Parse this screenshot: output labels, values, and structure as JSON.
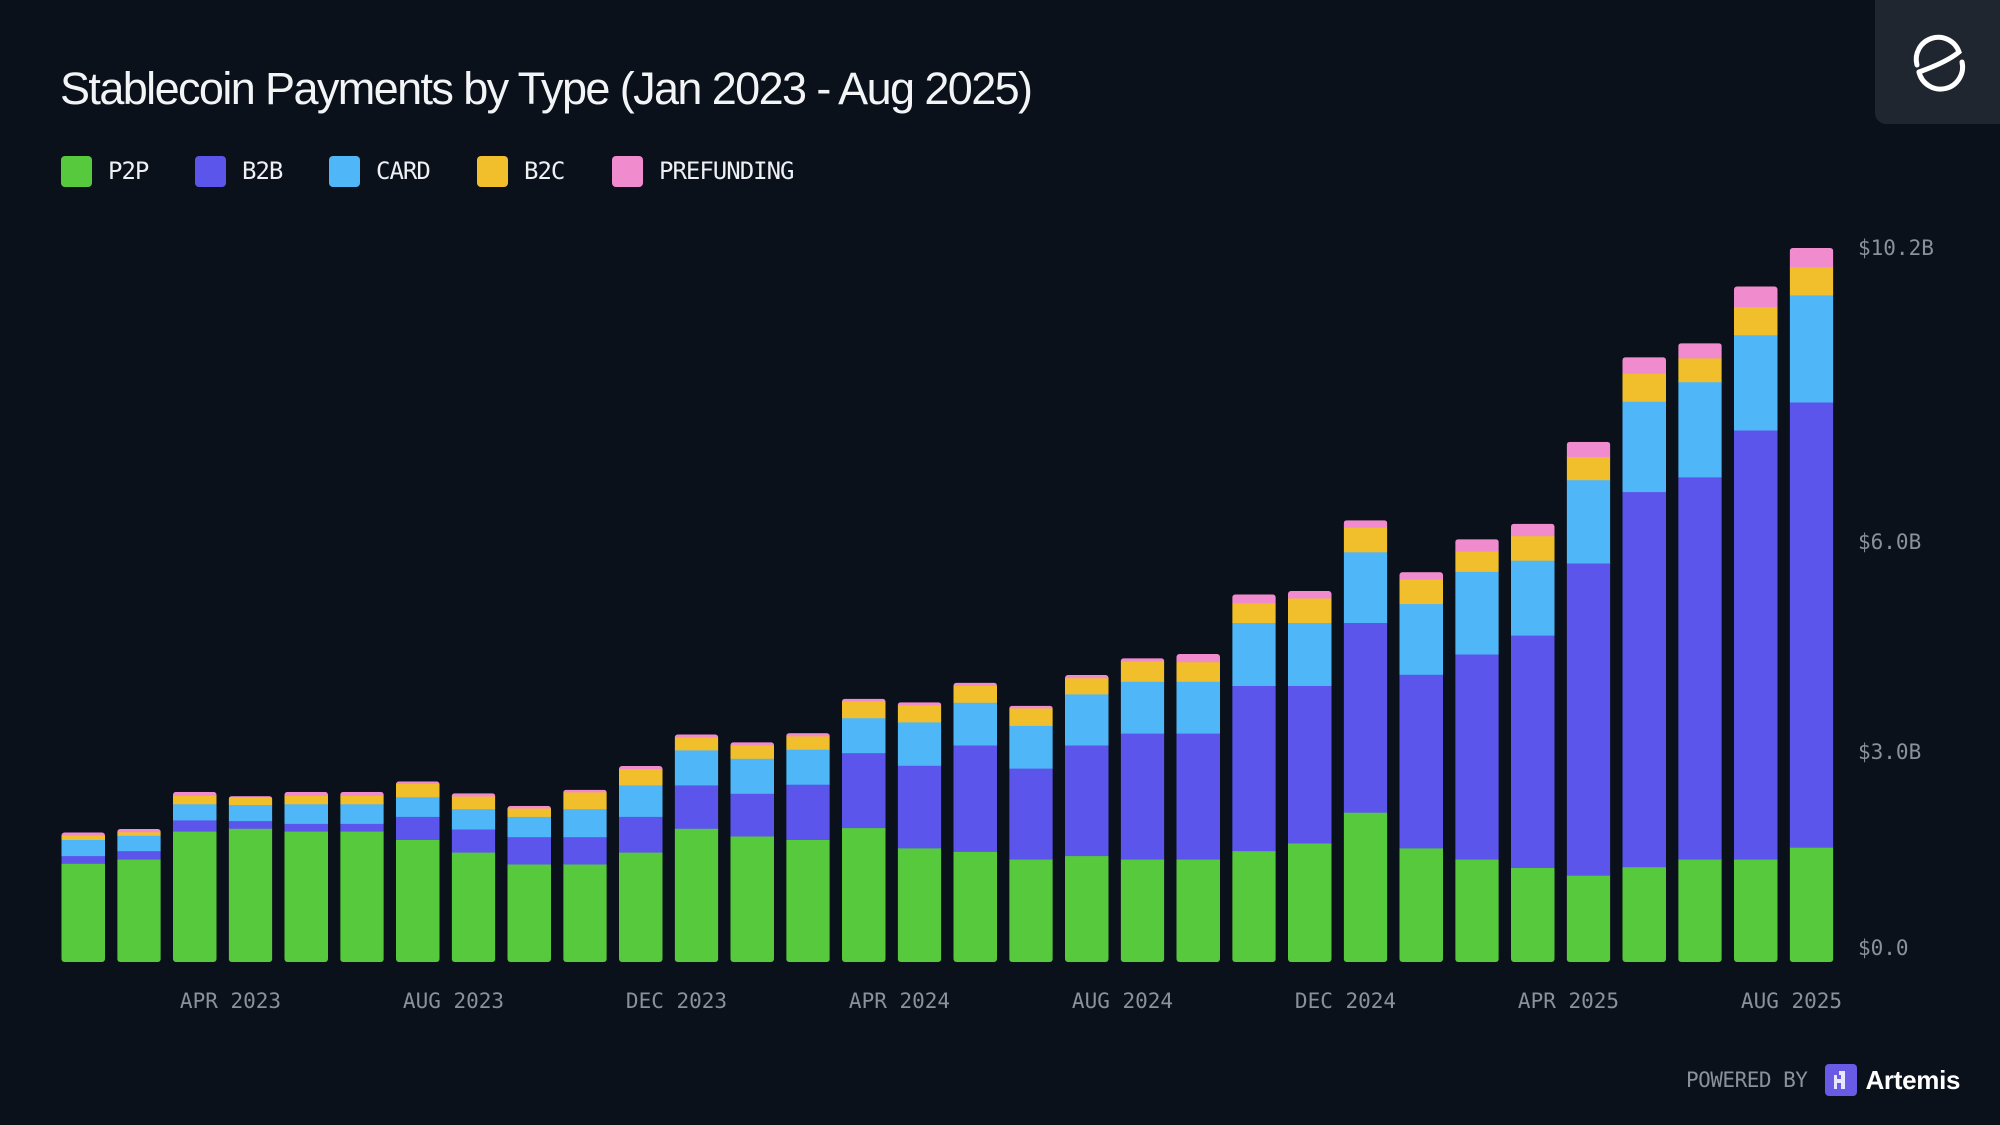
{
  "header": {
    "title": "Stablecoin Payments by Type (Jan 2023 - Aug 2025)"
  },
  "legend": [
    {
      "key": "p2p",
      "label": "P2P",
      "color": "#57c93c"
    },
    {
      "key": "b2b",
      "label": "B2B",
      "color": "#5b55eb"
    },
    {
      "key": "card",
      "label": "CARD",
      "color": "#4fb6f7"
    },
    {
      "key": "b2c",
      "label": "B2C",
      "color": "#f0bf2b"
    },
    {
      "key": "prefunding",
      "label": "PREFUNDING",
      "color": "#f08ccd"
    }
  ],
  "footer": {
    "powered_by": "POWERED BY",
    "brand": "Artemis"
  },
  "logo": {
    "icon": "e-ring-logo-icon"
  },
  "chart_data": {
    "type": "bar",
    "stacked": true,
    "title": "Stablecoin Payments by Type (Jan 2023 - Aug 2025)",
    "xlabel": "",
    "ylabel": "",
    "units": "USD billions",
    "ylim": [
      0,
      10.2
    ],
    "y_ticks": [
      {
        "value": 0,
        "label": "$0.0"
      },
      {
        "value": 3.0,
        "label": "$3.0B"
      },
      {
        "value": 6.0,
        "label": "$6.0B"
      },
      {
        "value": 10.2,
        "label": "$10.2B"
      }
    ],
    "x_tick_labels": [
      {
        "index": 3,
        "label": "APR 2023"
      },
      {
        "index": 7,
        "label": "AUG 2023"
      },
      {
        "index": 11,
        "label": "DEC 2023"
      },
      {
        "index": 15,
        "label": "APR 2024"
      },
      {
        "index": 19,
        "label": "AUG 2024"
      },
      {
        "index": 23,
        "label": "DEC 2024"
      },
      {
        "index": 27,
        "label": "APR 2025"
      },
      {
        "index": 31,
        "label": "AUG 2025"
      }
    ],
    "grid": false,
    "legend_position": "top-left",
    "y_axis_position": "right",
    "categories": [
      "Jan 2023",
      "Feb 2023",
      "Mar 2023",
      "Apr 2023",
      "May 2023",
      "Jun 2023",
      "Jul 2023",
      "Aug 2023",
      "Sep 2023",
      "Oct 2023",
      "Nov 2023",
      "Dec 2023",
      "Jan 2024",
      "Feb 2024",
      "Mar 2024",
      "Apr 2024",
      "May 2024",
      "Jun 2024",
      "Jul 2024",
      "Aug 2024",
      "Sep 2024",
      "Oct 2024",
      "Nov 2024",
      "Dec 2024",
      "Jan 2025",
      "Feb 2025",
      "Mar 2025",
      "Apr 2025",
      "May 2025",
      "Jun 2025",
      "Jul 2025",
      "Aug 2025"
    ],
    "series": [
      {
        "name": "P2P",
        "key": "p2p",
        "values": [
          1.41,
          1.47,
          1.87,
          1.91,
          1.87,
          1.87,
          1.75,
          1.57,
          1.4,
          1.4,
          1.57,
          1.91,
          1.8,
          1.75,
          1.92,
          1.63,
          1.58,
          1.47,
          1.52,
          1.47,
          1.47,
          1.59,
          1.7,
          2.14,
          1.63,
          1.47,
          1.35,
          1.24,
          1.36,
          1.47,
          1.47,
          1.64
        ]
      },
      {
        "name": "B2B",
        "key": "b2b",
        "values": [
          0.11,
          0.12,
          0.16,
          0.11,
          0.11,
          0.11,
          0.33,
          0.33,
          0.39,
          0.39,
          0.51,
          0.62,
          0.61,
          0.79,
          1.07,
          1.18,
          1.52,
          1.3,
          1.58,
          1.8,
          1.8,
          2.36,
          2.25,
          2.71,
          2.48,
          2.93,
          3.32,
          4.46,
          5.36,
          5.46,
          6.13,
          6.36
        ]
      },
      {
        "name": "CARD",
        "key": "card",
        "values": [
          0.23,
          0.22,
          0.23,
          0.23,
          0.28,
          0.28,
          0.28,
          0.29,
          0.29,
          0.4,
          0.45,
          0.5,
          0.5,
          0.5,
          0.5,
          0.62,
          0.61,
          0.61,
          0.73,
          0.74,
          0.74,
          0.9,
          0.9,
          1.01,
          1.01,
          1.18,
          1.07,
          1.19,
          1.29,
          1.36,
          1.36,
          1.53
        ]
      },
      {
        "name": "B2C",
        "key": "b2c",
        "values": [
          0.06,
          0.05,
          0.12,
          0.11,
          0.12,
          0.12,
          0.19,
          0.18,
          0.12,
          0.24,
          0.23,
          0.18,
          0.19,
          0.19,
          0.24,
          0.24,
          0.24,
          0.25,
          0.23,
          0.29,
          0.28,
          0.28,
          0.35,
          0.35,
          0.35,
          0.29,
          0.35,
          0.33,
          0.4,
          0.34,
          0.4,
          0.4
        ]
      },
      {
        "name": "PREFUNDING",
        "key": "prefunding",
        "values": [
          0.04,
          0.04,
          0.05,
          0.01,
          0.05,
          0.05,
          0.03,
          0.04,
          0.03,
          0.03,
          0.04,
          0.04,
          0.04,
          0.04,
          0.03,
          0.04,
          0.04,
          0.03,
          0.04,
          0.04,
          0.11,
          0.12,
          0.1,
          0.1,
          0.1,
          0.17,
          0.17,
          0.21,
          0.23,
          0.21,
          0.29,
          0.27
        ]
      }
    ]
  }
}
